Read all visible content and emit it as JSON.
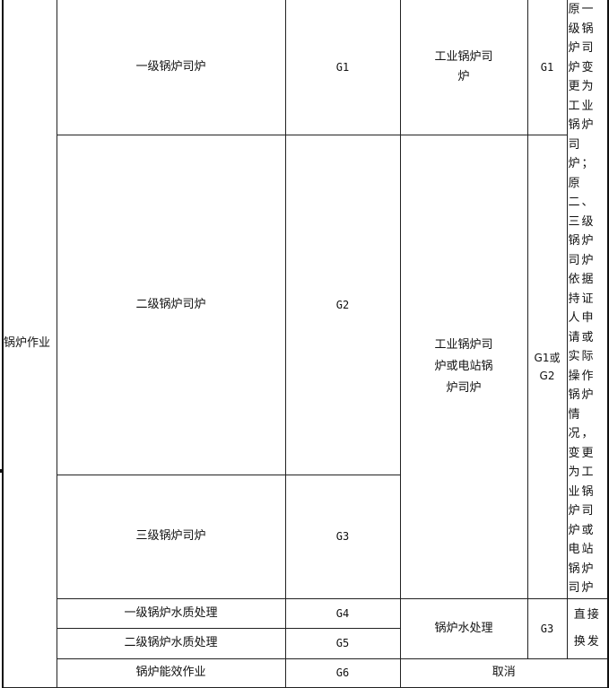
{
  "table": {
    "category": "锅炉作业",
    "rows": [
      {
        "old_item": "一级锅炉司炉",
        "old_code": "G1"
      },
      {
        "old_item": "二级锅炉司炉",
        "old_code": "G2"
      },
      {
        "old_item": "三级锅炉司炉",
        "old_code": "G3"
      },
      {
        "old_item": "一级锅炉水质处理",
        "old_code": "G4"
      },
      {
        "old_item": "二级锅炉水质处理",
        "old_code": "G5"
      },
      {
        "old_item": "锅炉能效作业",
        "old_code": "G6"
      }
    ],
    "new_groups": [
      {
        "new_item": "工业锅炉司炉",
        "new_code": "G1"
      },
      {
        "new_item": "工业锅炉司炉或电站锅炉司炉",
        "new_code": "G1或G2"
      },
      {
        "new_item": "锅炉水处理",
        "new_code": "G3"
      }
    ],
    "cancelled": "取消",
    "notes": {
      "boiler_operation": "原一级锅炉司炉变更为工业锅炉司炉；原二、三级锅炉司炉依据持证人申请或实际操作锅炉情况，变更为工业锅炉司炉或电站锅炉司炉",
      "water_treatment": "直接换发"
    }
  }
}
